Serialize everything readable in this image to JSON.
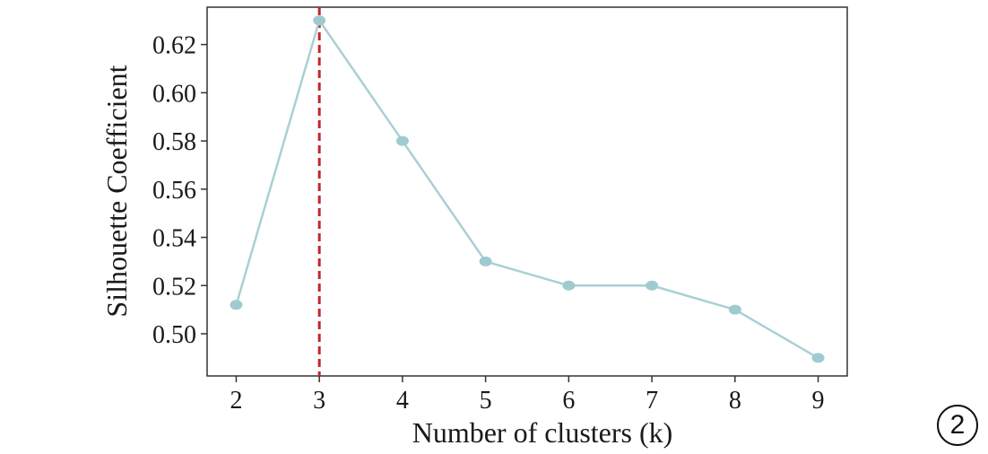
{
  "chart_data": {
    "type": "line",
    "x": [
      2,
      3,
      4,
      5,
      6,
      7,
      8,
      9
    ],
    "series": [
      {
        "values": [
          0.512,
          0.63,
          0.58,
          0.53,
          0.52,
          0.52,
          0.51,
          0.49
        ]
      }
    ],
    "xlabel": "Number of clusters (k)",
    "ylabel": "Silhouette Coefficient",
    "xticks": [
      "2",
      "3",
      "4",
      "5",
      "6",
      "7",
      "8",
      "9"
    ],
    "yticks": [
      "0.50",
      "0.52",
      "0.54",
      "0.56",
      "0.58",
      "0.60",
      "0.62"
    ],
    "xlim": [
      1.65,
      9.35
    ],
    "ylim": [
      0.4825,
      0.6355
    ],
    "grid": false,
    "vline": {
      "x": 3,
      "style": "dashed",
      "color": "#c0282d"
    },
    "colors": {
      "line": "#a9d0d4",
      "marker": "#9fcbd0",
      "vline": "#c0282d"
    }
  },
  "panel_label": "2"
}
